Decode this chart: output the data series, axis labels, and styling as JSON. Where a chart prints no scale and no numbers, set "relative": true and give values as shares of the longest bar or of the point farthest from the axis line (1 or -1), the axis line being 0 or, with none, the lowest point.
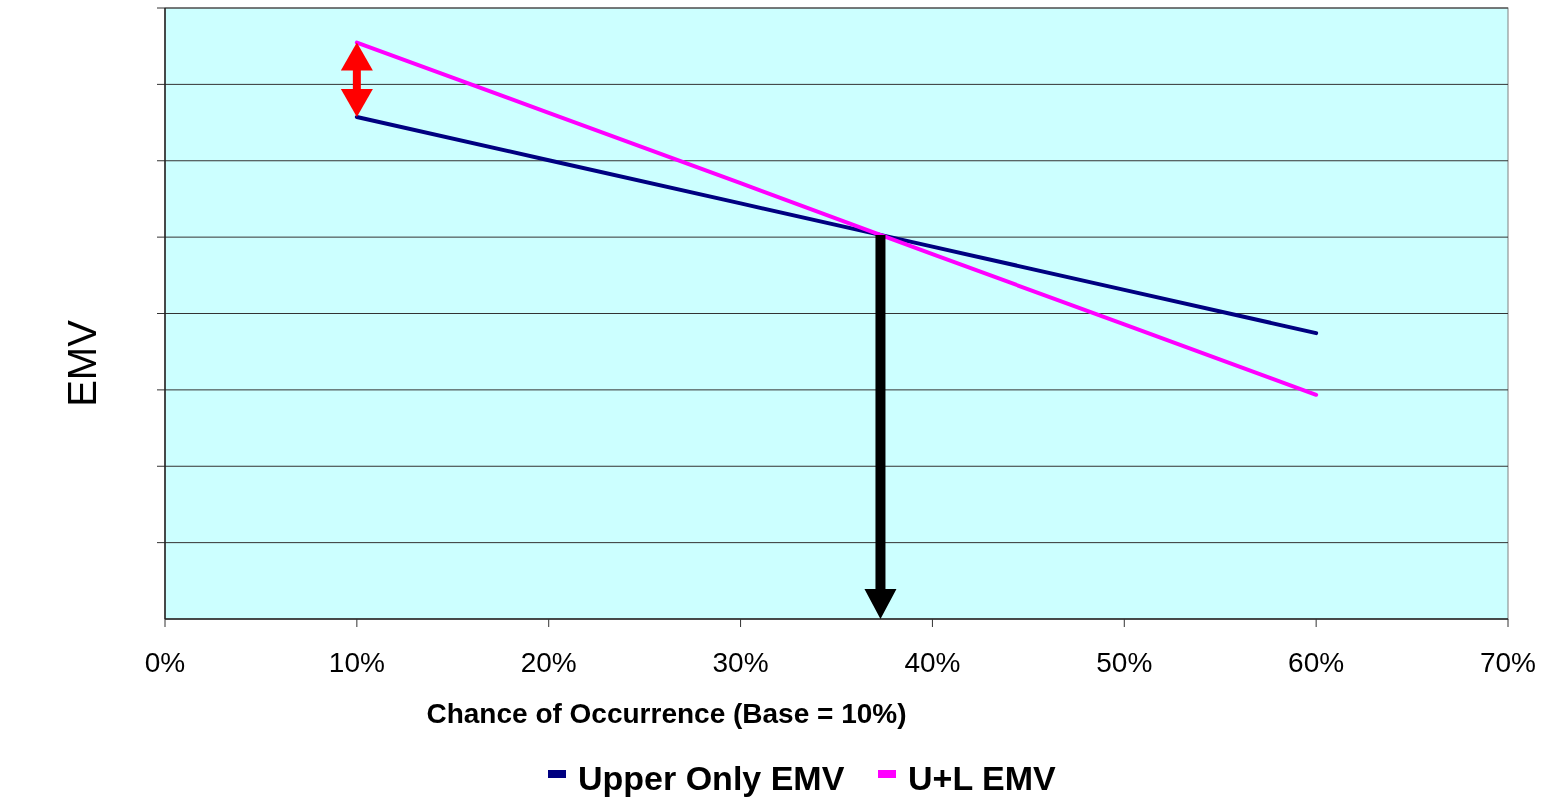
{
  "chart_data": {
    "type": "line",
    "relative": true,
    "xlabel": "Chance of Occurrence (Base = 10%)",
    "ylabel": "EMV",
    "x": [
      10,
      20,
      30,
      40,
      50,
      60
    ],
    "xlim": [
      0,
      70
    ],
    "xticks": [
      {
        "value": 0,
        "label": "0%"
      },
      {
        "value": 10,
        "label": "10%"
      },
      {
        "value": 20,
        "label": "20%"
      },
      {
        "value": 30,
        "label": "30%"
      },
      {
        "value": 40,
        "label": "40%"
      },
      {
        "value": 50,
        "label": "50%"
      },
      {
        "value": 60,
        "label": "60%"
      },
      {
        "value": 70,
        "label": "70%"
      }
    ],
    "series": [
      {
        "name": "Upper Only EMV",
        "color": "#000080",
        "values": [
          0.871,
          0.796,
          0.721,
          0.646,
          0.571,
          0.496
        ]
      },
      {
        "name": "U+L EMV",
        "color": "#ff00ff",
        "values": [
          1,
          0.878,
          0.756,
          0.633,
          0.511,
          0.389
        ]
      }
    ],
    "grid": "y",
    "legend": "bottom",
    "marker": "none",
    "line_style": "solid"
  }
}
